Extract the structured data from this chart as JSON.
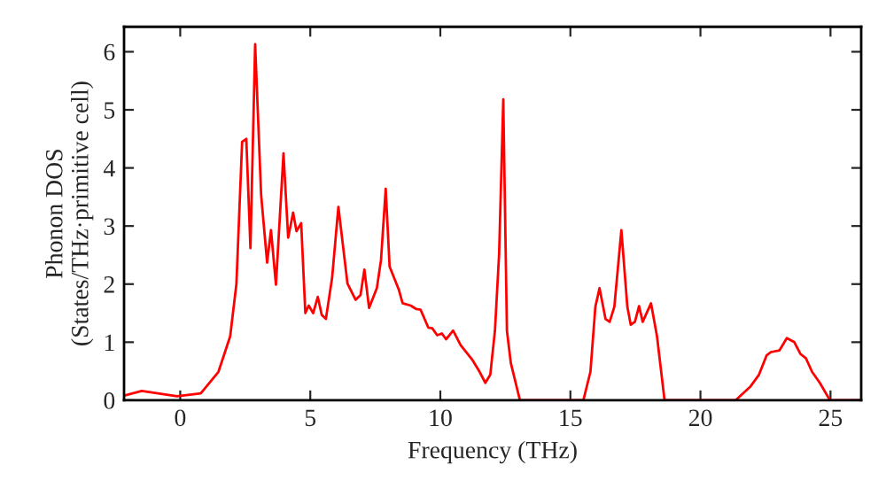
{
  "chart_data": {
    "type": "line",
    "xlabel": "Frequency (THz)",
    "ylabel": "Phonon DOS\n(States/THz·primitive cell)",
    "x": [
      -2.16,
      -1.48,
      -0.12,
      0.79,
      1.47,
      1.92,
      2.16,
      2.38,
      2.54,
      2.7,
      2.88,
      3.11,
      3.34,
      3.49,
      3.68,
      3.97,
      4.15,
      4.34,
      4.47,
      4.65,
      4.81,
      4.94,
      5.11,
      5.29,
      5.44,
      5.6,
      5.84,
      6.08,
      6.43,
      6.74,
      6.93,
      7.08,
      7.26,
      7.56,
      7.72,
      7.9,
      8.05,
      8.4,
      8.55,
      8.86,
      9.08,
      9.24,
      9.54,
      9.69,
      9.88,
      10.06,
      10.22,
      10.49,
      10.78,
      11.24,
      11.51,
      11.73,
      11.92,
      12.1,
      12.26,
      12.42,
      12.56,
      12.71,
      13.06,
      15.5,
      15.77,
      15.96,
      16.12,
      16.35,
      16.51,
      16.69,
      16.96,
      17.19,
      17.32,
      17.48,
      17.64,
      17.78,
      18.1,
      18.33,
      18.62,
      21.35,
      21.91,
      22.25,
      22.54,
      22.71,
      23.04,
      23.32,
      23.61,
      23.84,
      24.06,
      24.29,
      24.59,
      24.98,
      26.18
    ],
    "values": [
      0.08,
      0.16,
      0.07,
      0.12,
      0.49,
      1.1,
      2.0,
      4.45,
      4.5,
      2.62,
      6.13,
      3.54,
      2.37,
      2.93,
      1.99,
      4.25,
      2.8,
      3.23,
      2.91,
      3.05,
      1.5,
      1.63,
      1.5,
      1.78,
      1.47,
      1.4,
      2.11,
      3.33,
      2.01,
      1.73,
      1.81,
      2.25,
      1.59,
      1.93,
      2.42,
      3.64,
      2.3,
      1.91,
      1.67,
      1.63,
      1.57,
      1.56,
      1.25,
      1.24,
      1.12,
      1.15,
      1.05,
      1.2,
      0.95,
      0.69,
      0.49,
      0.3,
      0.44,
      1.2,
      2.52,
      5.18,
      1.2,
      0.64,
      0,
      0,
      0.49,
      1.61,
      1.93,
      1.4,
      1.35,
      1.61,
      2.93,
      1.61,
      1.3,
      1.35,
      1.62,
      1.35,
      1.67,
      1.1,
      0,
      0,
      0.23,
      0.44,
      0.77,
      0.83,
      0.86,
      1.07,
      1.0,
      0.8,
      0.72,
      0.49,
      0.3,
      0,
      0
    ],
    "color": "#ff0000",
    "xlim": [
      -2.16,
      26.18
    ],
    "ylim": [
      0,
      6.43
    ],
    "xticks": [
      0,
      5,
      10,
      15,
      20,
      25
    ],
    "yticks": [
      0,
      1,
      2,
      3,
      4,
      5,
      6
    ],
    "grid": false
  }
}
